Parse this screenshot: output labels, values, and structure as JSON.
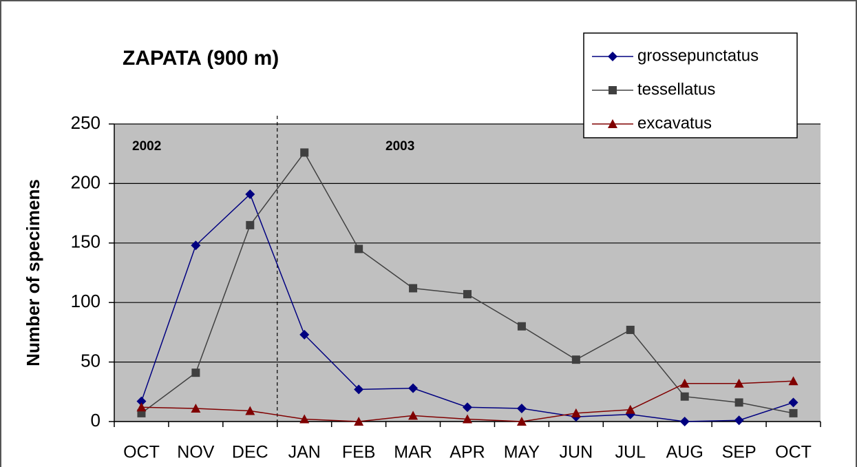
{
  "chart_data": {
    "type": "line",
    "title": "ZAPATA (900 m)",
    "y_label": "Number of specimens",
    "categories": [
      "OCT",
      "NOV",
      "DEC",
      "JAN",
      "FEB",
      "MAR",
      "APR",
      "MAY",
      "JUN",
      "JUL",
      "AUG",
      "SEP",
      "OCT"
    ],
    "series": [
      {
        "name": "grossepunctatus",
        "color": "#000080",
        "marker": "diamond",
        "values": [
          17,
          148,
          191,
          73,
          27,
          28,
          12,
          11,
          4,
          6,
          0,
          1,
          16
        ]
      },
      {
        "name": "tessellatus",
        "color": "#404040",
        "marker": "square",
        "values": [
          7,
          41,
          165,
          226,
          145,
          112,
          107,
          80,
          52,
          77,
          21,
          16,
          7
        ]
      },
      {
        "name": "excavatus",
        "color": "#800000",
        "marker": "triangle",
        "values": [
          12,
          11,
          9,
          2,
          0,
          5,
          2,
          0,
          7,
          10,
          32,
          32,
          34
        ]
      }
    ],
    "annotations": [
      "2002",
      "2003"
    ],
    "ylim": [
      0,
      250
    ],
    "yticks": [
      0,
      50,
      100,
      150,
      200,
      250
    ],
    "grid": true,
    "legend": "top-right"
  }
}
